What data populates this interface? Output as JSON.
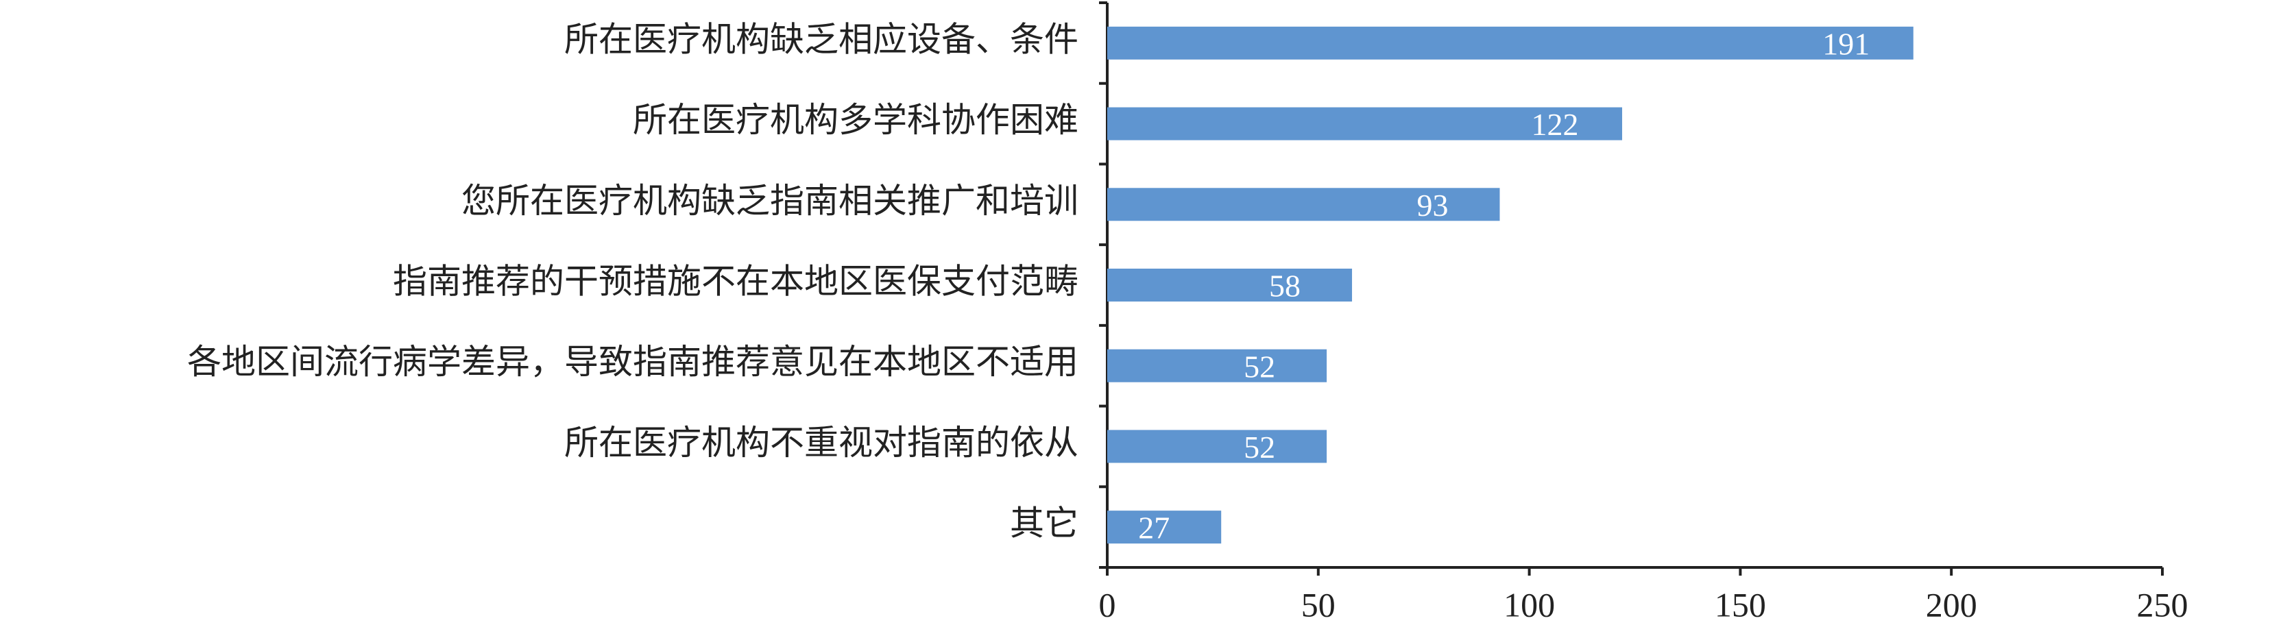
{
  "chart_data": {
    "type": "barh",
    "categories": [
      "所在医疗机构缺乏相应设备、条件",
      "所在医疗机构多学科协作困难",
      "您所在医疗机构缺乏指南相关推广和培训",
      "指南推荐的干预措施不在本地区医保支付范畴",
      "各地区间流行病学差异，导致指南推荐意见在本地区不适用",
      "所在医疗机构不重视对指南的依从",
      "其它"
    ],
    "values": [
      191,
      122,
      93,
      58,
      52,
      52,
      27
    ],
    "color": "#5f95d0",
    "xlim": [
      0,
      250
    ],
    "xticks": [
      0,
      50,
      100,
      150,
      200,
      250
    ]
  }
}
